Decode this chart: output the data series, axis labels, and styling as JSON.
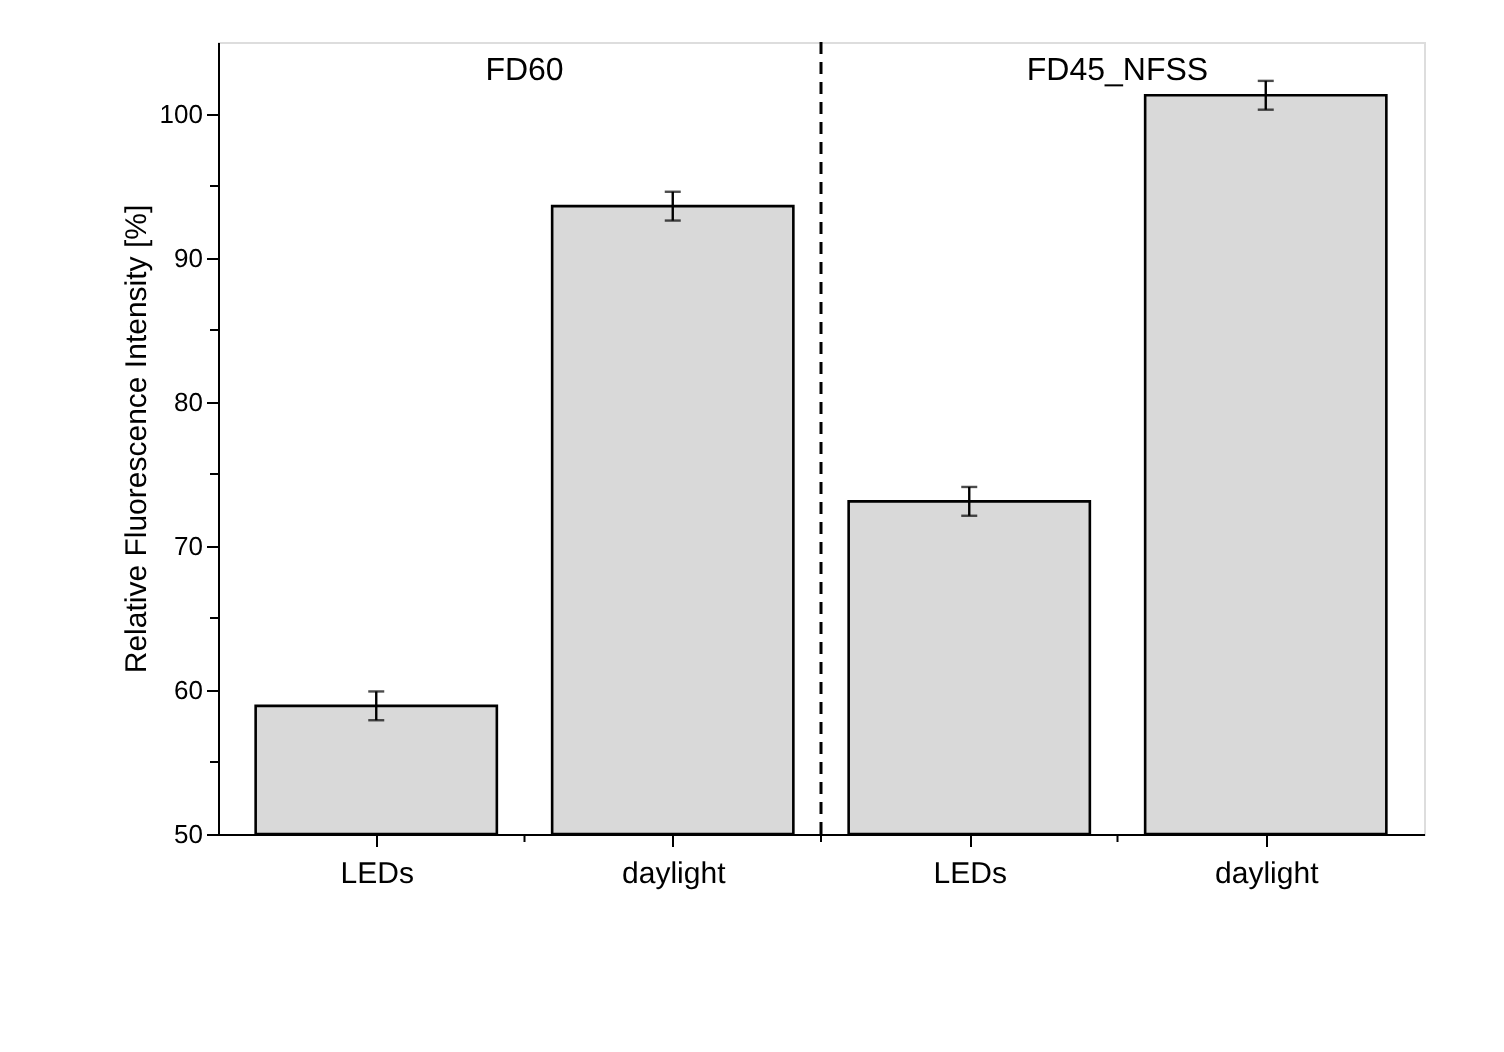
{
  "chart_data": {
    "type": "bar",
    "categories": [
      "LEDs",
      "daylight",
      "LEDs",
      "daylight"
    ],
    "values": [
      58.9,
      93.6,
      73.1,
      101.3
    ],
    "errors": [
      1.0,
      1.0,
      1.0,
      1.0
    ],
    "color": "#d9d9d9",
    "ylabel": "Relative Fluorescence Intensity [%]",
    "ylim": [
      50,
      105
    ],
    "yticks": [
      50,
      {
        "value": 55,
        "label": null
      },
      60,
      {
        "value": 65,
        "label": null
      },
      70,
      {
        "value": 75,
        "label": null
      },
      80,
      {
        "value": 85,
        "label": null
      },
      90,
      {
        "value": 95,
        "label": null
      },
      100
    ],
    "annotations": [
      "FD60",
      "FD45_NFSS"
    ],
    "grid": false
  }
}
